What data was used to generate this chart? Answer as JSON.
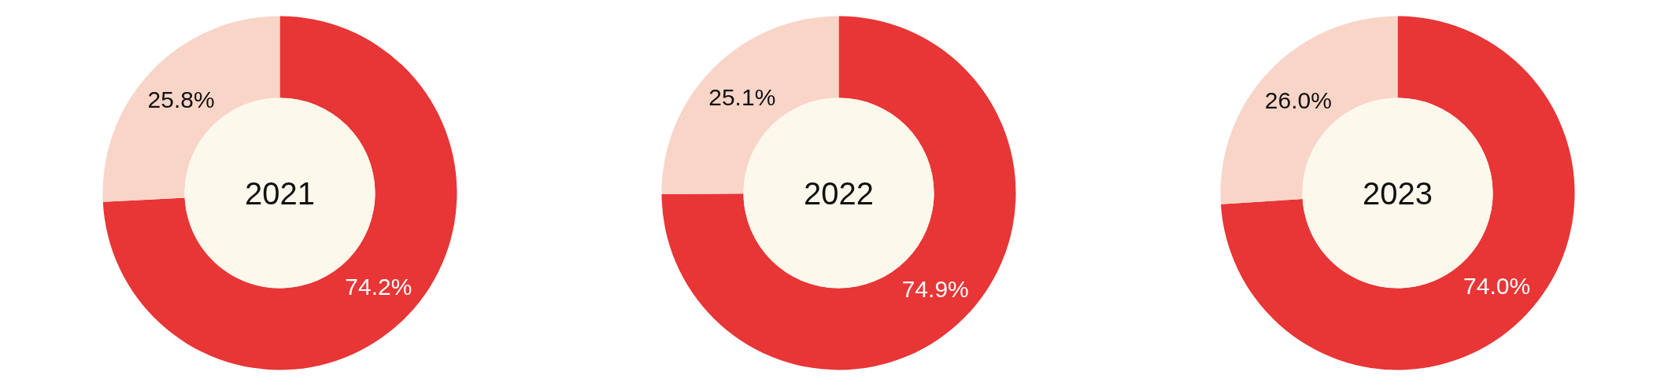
{
  "chart_data": [
    {
      "type": "donut",
      "title": "2021",
      "categories": [
        null,
        null
      ],
      "values": [
        74.2,
        25.8
      ],
      "value_labels": [
        "74.2%",
        "25.8%"
      ],
      "colors": [
        "#e83535",
        "#f9d5c8"
      ]
    },
    {
      "type": "donut",
      "title": "2022",
      "categories": [
        null,
        null
      ],
      "values": [
        74.9,
        25.1
      ],
      "value_labels": [
        "74.9%",
        "25.1%"
      ],
      "colors": [
        "#e83535",
        "#f9d5c8"
      ]
    },
    {
      "type": "donut",
      "title": "2023",
      "categories": [
        null,
        null
      ],
      "values": [
        74.0,
        26.0
      ],
      "value_labels": [
        "74.0%",
        "26.0%"
      ],
      "colors": [
        "#e83535",
        "#f9d5c8"
      ]
    }
  ]
}
